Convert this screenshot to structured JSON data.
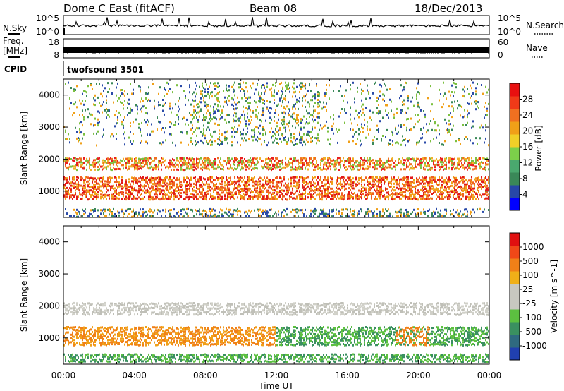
{
  "header": {
    "title": "Dome C East (fitACF)",
    "beam": "Beam 08",
    "date": "18/Dec/2013"
  },
  "noise_panel": {
    "left_label": "N.Sky",
    "right_label": "N.Search",
    "left_ticks": [
      "10^5",
      "10^0"
    ],
    "right_ticks": [
      "10^5",
      "10^0"
    ]
  },
  "freq_panel": {
    "left_label_1": "Freq.",
    "left_label_2": "[MHz]",
    "right_label": "Nave",
    "left_ticks": [
      "18",
      "8"
    ],
    "right_ticks": [
      "60",
      "0"
    ]
  },
  "cpid_panel": {
    "label": "CPID",
    "value": "twofsound 3501"
  },
  "chart_data": [
    {
      "type": "heatmap",
      "name": "power",
      "ylabel": "Slant Range [km]",
      "ylim": [
        180,
        4500
      ],
      "yticks": [
        "4000",
        "3000",
        "2000",
        "1000"
      ],
      "colorbar": {
        "label": "Power [dB]",
        "ticks": [
          "28",
          "24",
          "20",
          "16",
          "12",
          "8",
          "4"
        ],
        "colors": [
          "#0000ff",
          "#2747a8",
          "#3a8858",
          "#4aa86e",
          "#7cd04a",
          "#f0d028",
          "#f0a018",
          "#f07020",
          "#f03a18",
          "#e81010"
        ]
      },
      "bands": [
        {
          "range": [
            1600,
            2050
          ],
          "level": "high",
          "colors": [
            "#e82020",
            "#f07020",
            "#f0b028",
            "#7cc040"
          ]
        },
        {
          "range": [
            700,
            1450
          ],
          "level": "high",
          "colors": [
            "#e01818",
            "#f06020",
            "#f0a018"
          ]
        },
        {
          "range": [
            180,
            450
          ],
          "level": "low",
          "colors": [
            "#2a4aa8",
            "#3a8858",
            "#f0a018"
          ]
        },
        {
          "range": [
            2400,
            4400
          ],
          "level": "sparse",
          "colors": [
            "#2a4aa8",
            "#3a8858",
            "#7cc040",
            "#f0a018"
          ]
        }
      ]
    },
    {
      "type": "heatmap",
      "name": "velocity",
      "ylabel": "Slant Range [km]",
      "ylim": [
        180,
        4500
      ],
      "yticks": [
        "4000",
        "3000",
        "2000",
        "1000"
      ],
      "xlabel": "Time UT",
      "xticks": [
        "00:00",
        "04:00",
        "08:00",
        "12:00",
        "16:00",
        "20:00",
        "00:00"
      ],
      "colorbar": {
        "label": "Velocity [m s^-1]",
        "ticks": [
          "1000",
          "500",
          "100",
          "25",
          "-25",
          "-100",
          "-500",
          "-1000"
        ],
        "colors": [
          "#2040b0",
          "#2f6a80",
          "#3a9060",
          "#5cc040",
          "#c8c8c0",
          "#c8c8c0",
          "#f0b018",
          "#f08018",
          "#f04818",
          "#e01010"
        ]
      },
      "bands": [
        {
          "range": [
            1650,
            2100
          ],
          "level": "gray",
          "colors": [
            "#c0c0b8",
            "#d0d0c8"
          ]
        },
        {
          "range": [
            700,
            1350
          ],
          "level": "orange_then_green",
          "colors": [
            "#f08018",
            "#f0a018",
            "#3a9060",
            "#5cc040"
          ]
        },
        {
          "range": [
            180,
            500
          ],
          "level": "green",
          "colors": [
            "#3a9060",
            "#5cc040"
          ]
        }
      ]
    }
  ]
}
